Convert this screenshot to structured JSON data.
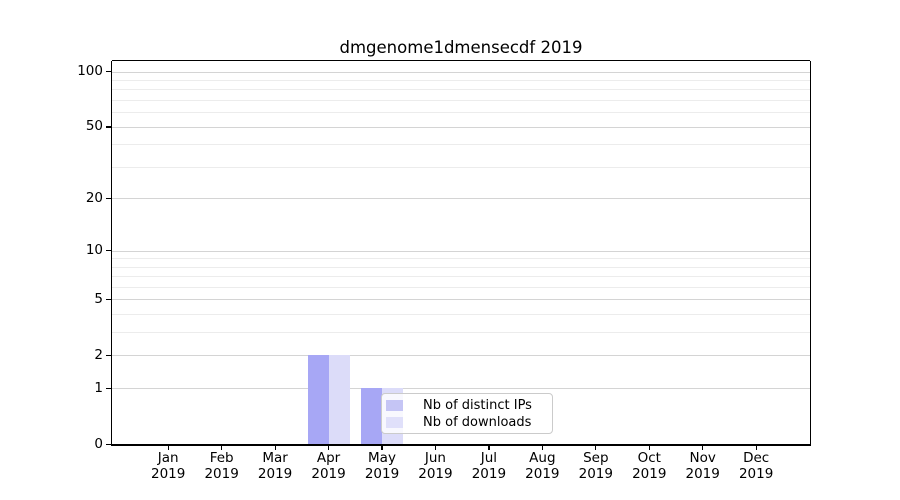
{
  "title": "dmgenome1dmensecdf 2019",
  "colors": {
    "background": "#ffffff",
    "bar_distinct_ips": "#a7a7f5",
    "bar_downloads": "#dcdcf9",
    "legend_swatch_distinct_ips": "#c5c5f5",
    "legend_swatch_downloads": "#e0e0fa",
    "grid_major": "#d4d4d4",
    "grid_minor": "#ececec",
    "axis": "#000000",
    "text": "#000000"
  },
  "chart_data": {
    "type": "bar",
    "title": "dmgenome1dmensecdf 2019",
    "categories": [
      "Jan 2019",
      "Feb 2019",
      "Mar 2019",
      "Apr 2019",
      "May 2019",
      "Jun 2019",
      "Jul 2019",
      "Aug 2019",
      "Sep 2019",
      "Oct 2019",
      "Nov 2019",
      "Dec 2019"
    ],
    "months": [
      "Jan",
      "Feb",
      "Mar",
      "Apr",
      "May",
      "Jun",
      "Jul",
      "Aug",
      "Sep",
      "Oct",
      "Nov",
      "Dec"
    ],
    "year_label": "2019",
    "series": [
      {
        "name": "Nb of distinct IPs",
        "values": [
          0,
          0,
          0,
          2,
          1,
          0,
          0,
          0,
          0,
          0,
          0,
          0
        ]
      },
      {
        "name": "Nb of downloads",
        "values": [
          0,
          0,
          0,
          2,
          1,
          0,
          0,
          0,
          0,
          0,
          0,
          0
        ]
      }
    ],
    "xlabel": "",
    "ylabel": "",
    "y_scale": "log1p",
    "y_major_ticks": [
      0,
      1,
      2,
      5,
      10,
      20,
      50,
      100
    ],
    "y_minor_gridlines": [
      3,
      4,
      6,
      7,
      8,
      9,
      30,
      40,
      60,
      70,
      80,
      90
    ],
    "ylim": [
      0,
      115
    ],
    "grid": true,
    "legend_position": "lower center-right inside plot"
  }
}
